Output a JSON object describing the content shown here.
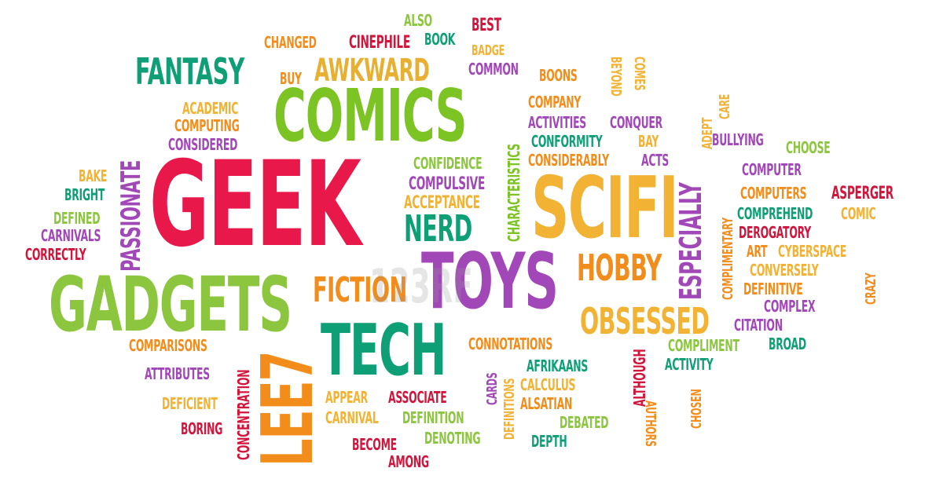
{
  "words": [
    {
      "id": "geek",
      "text": "GEEK",
      "color": "#e8184a"
    },
    {
      "id": "comics",
      "text": "COMICS",
      "color": "#7cc324"
    },
    {
      "id": "scifi",
      "text": "SCIFI",
      "color": "#f2b233"
    },
    {
      "id": "gadgets",
      "text": "GADGETS",
      "color": "#8cc63e"
    },
    {
      "id": "tech",
      "text": "TECH",
      "color": "#0e9f76"
    },
    {
      "id": "toys",
      "text": "TOYS",
      "color": "#a247b8"
    },
    {
      "id": "leet",
      "text": "LEE7",
      "color": "#f28c1a"
    },
    {
      "id": "fantasy",
      "text": "FANTASY",
      "color": "#0e9f76"
    },
    {
      "id": "awkward",
      "text": "AWKWARD",
      "color": "#e8b033"
    },
    {
      "id": "nerd",
      "text": "NERD",
      "color": "#0e9f76"
    },
    {
      "id": "fiction",
      "text": "FICTION",
      "color": "#f28c1a"
    },
    {
      "id": "hobby",
      "text": "HOBBY",
      "color": "#f28c1a"
    },
    {
      "id": "obsessed",
      "text": "OBSESSED",
      "color": "#f2b233"
    },
    {
      "id": "passionate",
      "text": "PASSIONATE",
      "color": "#a247b8"
    },
    {
      "id": "especially",
      "text": "ESPECIALLY",
      "color": "#a247b8"
    },
    {
      "id": "concentration",
      "text": "CONCENTRATION",
      "color": "#d0163c"
    },
    {
      "id": "characteristics",
      "text": "CHARACTERISTICS",
      "color": "#7cc324"
    },
    {
      "id": "complimentary",
      "text": "COMPLIMENTARY",
      "color": "#f28c1a"
    },
    {
      "id": "also",
      "text": "ALSO",
      "color": "#8cc63e"
    },
    {
      "id": "best",
      "text": "BEST",
      "color": "#d0163c"
    },
    {
      "id": "changed",
      "text": "CHANGED",
      "color": "#f28c1a"
    },
    {
      "id": "cinephile",
      "text": "CINEPHILE",
      "color": "#d0163c"
    },
    {
      "id": "book",
      "text": "BOOK",
      "color": "#0e9f76"
    },
    {
      "id": "badge",
      "text": "BADGE",
      "color": "#f2b233"
    },
    {
      "id": "common",
      "text": "COMMON",
      "color": "#a247b8"
    },
    {
      "id": "buy",
      "text": "BUY",
      "color": "#f28c1a"
    },
    {
      "id": "boons",
      "text": "BOONS",
      "color": "#f28c1a"
    },
    {
      "id": "beyond",
      "text": "BEYOND",
      "color": "#f2b233"
    },
    {
      "id": "comes",
      "text": "COMES",
      "color": "#f2b233"
    },
    {
      "id": "academic",
      "text": "ACADEMIC",
      "color": "#f2b233"
    },
    {
      "id": "computing",
      "text": "COMPUTING",
      "color": "#f28c1a"
    },
    {
      "id": "considered",
      "text": "CONSIDERED",
      "color": "#a247b8"
    },
    {
      "id": "company",
      "text": "COMPANY",
      "color": "#f28c1a"
    },
    {
      "id": "activities",
      "text": "ACTIVITIES",
      "color": "#a247b8"
    },
    {
      "id": "conquer",
      "text": "CONQUER",
      "color": "#a247b8"
    },
    {
      "id": "adept",
      "text": "ADEPT",
      "color": "#f2b233"
    },
    {
      "id": "care",
      "text": "CARE",
      "color": "#f2b233"
    },
    {
      "id": "conformity",
      "text": "CONFORMITY",
      "color": "#0e9f76"
    },
    {
      "id": "bay",
      "text": "BAY",
      "color": "#f2b233"
    },
    {
      "id": "considerably",
      "text": "CONSIDERABLY",
      "color": "#f28c1a"
    },
    {
      "id": "acts",
      "text": "ACTS",
      "color": "#a247b8"
    },
    {
      "id": "bullying",
      "text": "BULLYING",
      "color": "#a247b8"
    },
    {
      "id": "choose",
      "text": "CHOOSE",
      "color": "#8cc63e"
    },
    {
      "id": "confidence",
      "text": "CONFIDENCE",
      "color": "#8cc63e"
    },
    {
      "id": "bake",
      "text": "BAKE",
      "color": "#f2b233"
    },
    {
      "id": "bright",
      "text": "BRIGHT",
      "color": "#0e9f76"
    },
    {
      "id": "compulsive",
      "text": "COMPULSIVE",
      "color": "#a247b8"
    },
    {
      "id": "acceptance",
      "text": "ACCEPTANCE",
      "color": "#f2b233"
    },
    {
      "id": "computer",
      "text": "COMPUTER",
      "color": "#a247b8"
    },
    {
      "id": "computers",
      "text": "COMPUTERS",
      "color": "#f28c1a"
    },
    {
      "id": "asperger",
      "text": "ASPERGER",
      "color": "#d0163c"
    },
    {
      "id": "comprehend",
      "text": "COMPREHEND",
      "color": "#0e9f76"
    },
    {
      "id": "comic",
      "text": "COMIC",
      "color": "#f2b233"
    },
    {
      "id": "defined",
      "text": "DEFINED",
      "color": "#8cc63e"
    },
    {
      "id": "carnivals",
      "text": "CARNIVALS",
      "color": "#a247b8"
    },
    {
      "id": "correctly",
      "text": "CORRECTLY",
      "color": "#d0163c"
    },
    {
      "id": "derogatory",
      "text": "DEROGATORY",
      "color": "#d0163c"
    },
    {
      "id": "art",
      "text": "ART",
      "color": "#f28c1a"
    },
    {
      "id": "cyberspace",
      "text": "CYBERSPACE",
      "color": "#f2b233"
    },
    {
      "id": "conversely",
      "text": "CONVERSELY",
      "color": "#f2b233"
    },
    {
      "id": "crazy",
      "text": "CRAZY",
      "color": "#f28c1a"
    },
    {
      "id": "definitive",
      "text": "DEFINITIVE",
      "color": "#f28c1a"
    },
    {
      "id": "complex",
      "text": "COMPLEX",
      "color": "#a247b8"
    },
    {
      "id": "citation",
      "text": "CITATION",
      "color": "#a247b8"
    },
    {
      "id": "comparisons",
      "text": "COMPARISONS",
      "color": "#f28c1a"
    },
    {
      "id": "connotations",
      "text": "CONNOTATIONS",
      "color": "#f28c1a"
    },
    {
      "id": "compliment",
      "text": "COMPLIMENT",
      "color": "#8cc63e"
    },
    {
      "id": "broad",
      "text": "BROAD",
      "color": "#0e9f76"
    },
    {
      "id": "activity",
      "text": "ACTIVITY",
      "color": "#0e9f76"
    },
    {
      "id": "attributes",
      "text": "ATTRIBUTES",
      "color": "#a247b8"
    },
    {
      "id": "cards",
      "text": "CARDS",
      "color": "#a247b8"
    },
    {
      "id": "afrikaans",
      "text": "AFRIKAANS",
      "color": "#0e9f76"
    },
    {
      "id": "calculus",
      "text": "CALCULUS",
      "color": "#f2b233"
    },
    {
      "id": "although",
      "text": "ALTHOUGH",
      "color": "#d0163c"
    },
    {
      "id": "authors",
      "text": "AUTHORS",
      "color": "#f28c1a"
    },
    {
      "id": "chosen",
      "text": "CHOSEN",
      "color": "#f28c1a"
    },
    {
      "id": "deficient",
      "text": "DEFICIENT",
      "color": "#f2b233"
    },
    {
      "id": "appear",
      "text": "APPEAR",
      "color": "#f2b233"
    },
    {
      "id": "associate",
      "text": "ASSOCIATE",
      "color": "#d0163c"
    },
    {
      "id": "alsatian",
      "text": "ALSATIAN",
      "color": "#f28c1a"
    },
    {
      "id": "definitions",
      "text": "DEFINITIONS",
      "color": "#f2b233"
    },
    {
      "id": "carnival",
      "text": "CARNIVAL",
      "color": "#f2b233"
    },
    {
      "id": "definition",
      "text": "DEFINITION",
      "color": "#8cc63e"
    },
    {
      "id": "debated",
      "text": "DEBATED",
      "color": "#8cc63e"
    },
    {
      "id": "boring",
      "text": "BORING",
      "color": "#d0163c"
    },
    {
      "id": "become",
      "text": "BECOME",
      "color": "#d0163c"
    },
    {
      "id": "denoting",
      "text": "DENOTING",
      "color": "#8cc63e"
    },
    {
      "id": "depth",
      "text": "DEPTH",
      "color": "#0e9f76"
    },
    {
      "id": "among",
      "text": "AMONG",
      "color": "#d0163c"
    }
  ],
  "watermark": "123RF"
}
